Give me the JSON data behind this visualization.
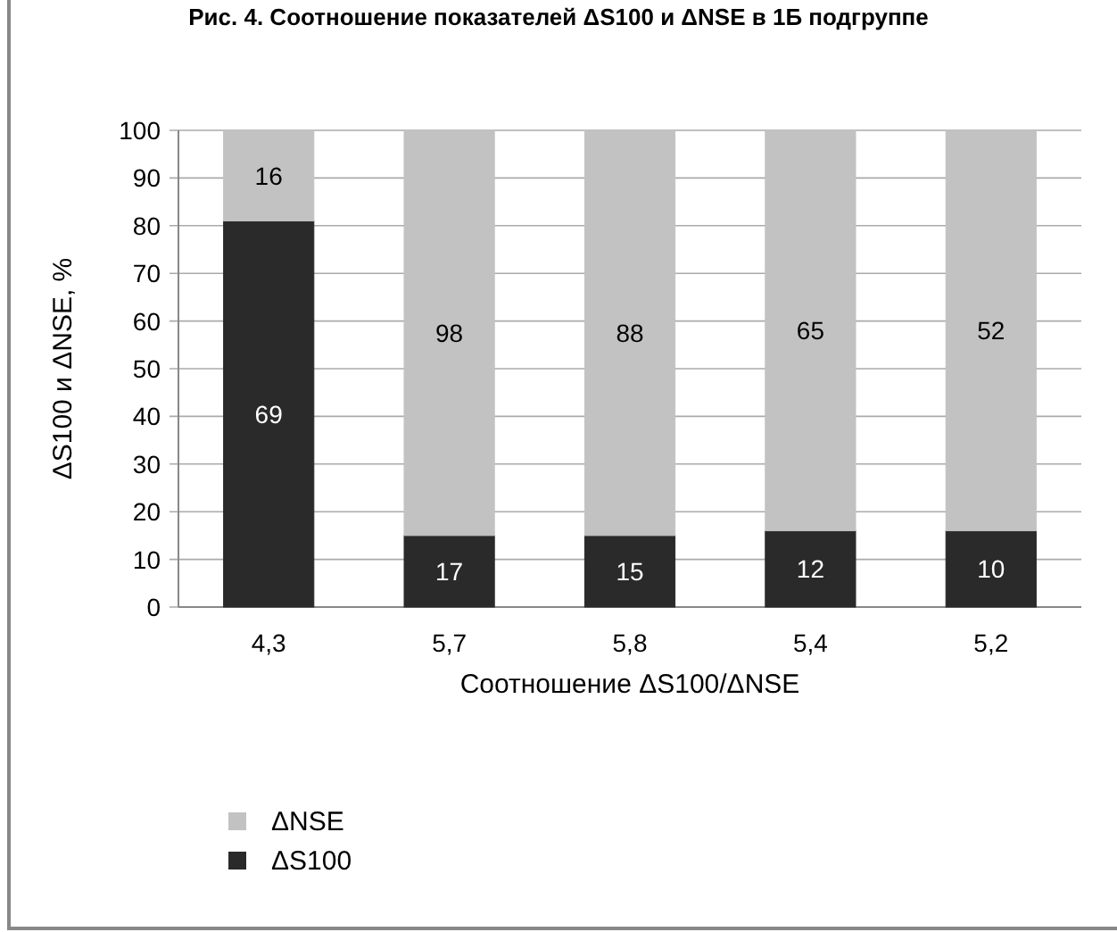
{
  "chart_data": {
    "type": "bar",
    "title": "Рис. 4. Соотношение показателей ΔS100 и ΔNSE в 1Б подгруппе",
    "xlabel": "Соотношение ΔS100/ΔNSE",
    "ylabel": "ΔS100 и ΔNSE, %",
    "categories": [
      "4,3",
      "5,7",
      "5,8",
      "5,4",
      "5,2"
    ],
    "stacked": true,
    "series": [
      {
        "name": "ΔS100",
        "color": "#2a2a2a",
        "values": [
          81,
          15,
          15,
          16,
          16
        ]
      },
      {
        "name": "ΔNSE",
        "color": "#c2c2c2",
        "values": [
          19,
          85,
          85,
          84,
          84
        ]
      }
    ],
    "annotations": [
      "69",
      "17",
      "15",
      "12",
      "10",
      "16",
      "98",
      "88",
      "65",
      "52"
    ],
    "ylim": [
      0,
      100
    ],
    "yticks": [
      0,
      10,
      20,
      30,
      40,
      50,
      60,
      70,
      80,
      90,
      100
    ],
    "grid": "y",
    "legend": "bottom left"
  }
}
